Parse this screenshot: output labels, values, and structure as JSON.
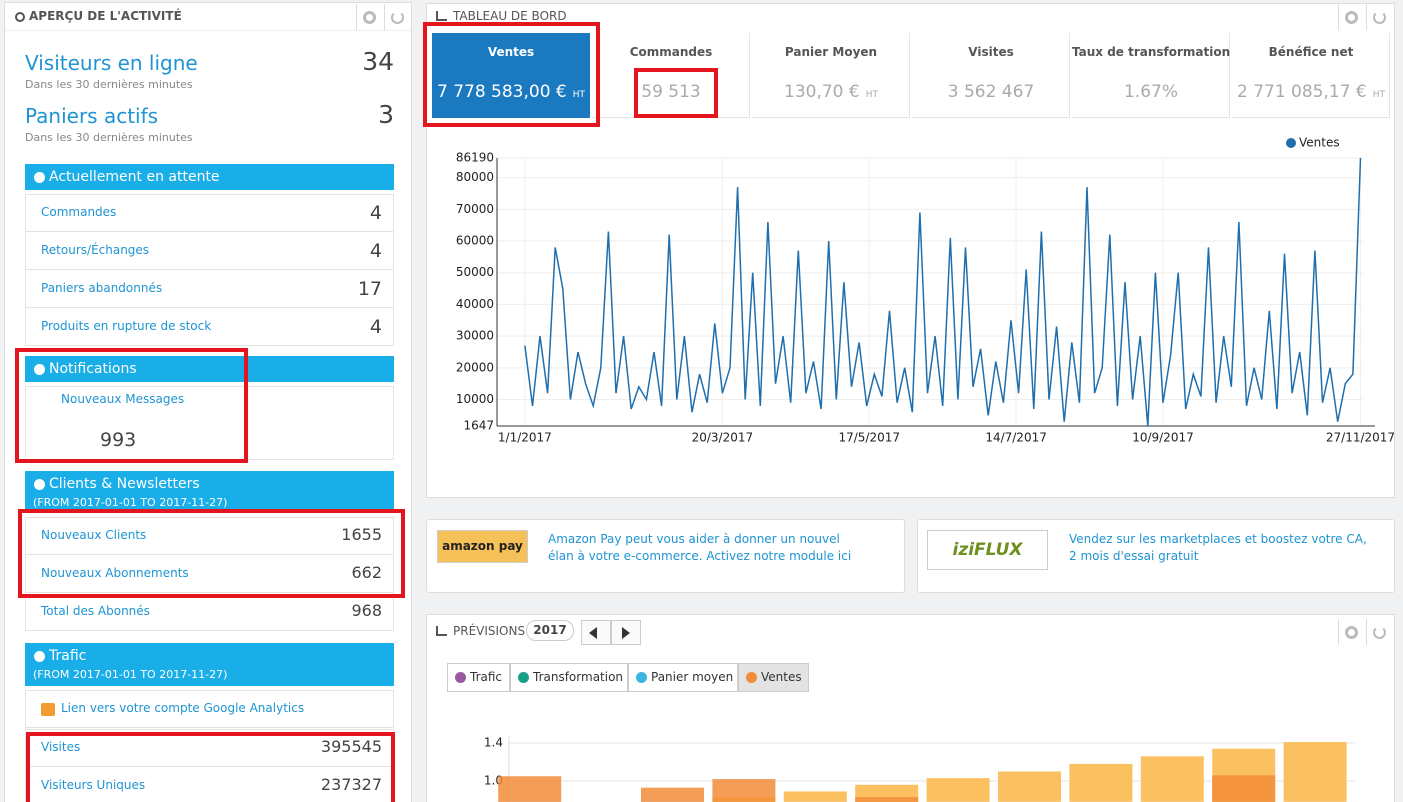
{
  "activity": {
    "title": "APERÇU DE L'ACTIVITÉ",
    "online": {
      "label": "Visiteurs en ligne",
      "sub": "Dans les 30 dernières minutes",
      "value": 34
    },
    "carts": {
      "label": "Paniers actifs",
      "sub": "Dans les 30 dernières minutes",
      "value": 3
    },
    "pending": {
      "title": "Actuellement en attente",
      "rows": [
        {
          "label": "Commandes",
          "value": 4
        },
        {
          "label": "Retours/Échanges",
          "value": 4
        },
        {
          "label": "Paniers abandonnés",
          "value": 17
        },
        {
          "label": "Produits en rupture de stock",
          "value": 4
        }
      ]
    },
    "notifications": {
      "title": "Notifications",
      "label": "Nouveaux Messages",
      "value": 993
    },
    "clients": {
      "title": "Clients & Newsletters",
      "period": "(FROM 2017-01-01 TO 2017-11-27)",
      "rows": [
        {
          "label": "Nouveaux Clients",
          "value": 1655
        },
        {
          "label": "Nouveaux Abonnements",
          "value": 662
        },
        {
          "label": "Total des Abonnés",
          "value": 968
        }
      ]
    },
    "traffic": {
      "title": "Trafic",
      "period": "(FROM 2017-01-01 TO 2017-11-27)",
      "link": "Lien vers votre compte Google Analytics",
      "rows": [
        {
          "label": "Visites",
          "value": 395545
        },
        {
          "label": "Visiteurs Uniques",
          "value": 237327
        }
      ]
    }
  },
  "dashboard": {
    "title": "TABLEAU DE BORD",
    "kpis": [
      {
        "label": "Ventes",
        "value": "7 778 583,00 €",
        "unit": "HT"
      },
      {
        "label": "Commandes",
        "value": "59 513"
      },
      {
        "label": "Panier Moyen",
        "value": "130,70 €",
        "unit": "HT"
      },
      {
        "label": "Visites",
        "value": "3 562 467"
      },
      {
        "label": "Taux de transformation",
        "value": "1.67%"
      },
      {
        "label": "Bénéfice net",
        "value": "2 771 085,17 €",
        "unit": "HT"
      }
    ]
  },
  "ads": [
    {
      "logo": "amazon pay",
      "text": "Amazon Pay peut vous aider à donner un nouvel élan à votre e-commerce. Activez notre module ici"
    },
    {
      "logo": "iziFLUX",
      "text": "Vendez sur les marketplaces et boostez votre CA, 2 mois d'essai gratuit"
    }
  ],
  "forecast": {
    "title": "PRÉVISIONS",
    "year": "2017",
    "tabs": [
      {
        "label": "Trafic",
        "color": "#9c5a9e"
      },
      {
        "label": "Transformation",
        "color": "#17a085"
      },
      {
        "label": "Panier moyen",
        "color": "#3ab5e0"
      },
      {
        "label": "Ventes",
        "color": "#f28c38"
      }
    ]
  },
  "chart_data": [
    {
      "type": "line",
      "x": [
        0,
        3,
        6,
        9,
        12,
        15,
        18,
        21,
        24,
        27,
        30,
        33,
        36,
        39,
        42,
        45,
        48,
        51,
        54,
        57,
        60,
        63,
        66,
        69,
        72,
        75,
        78,
        81,
        84,
        87,
        90,
        93,
        96,
        99,
        102,
        105,
        108,
        111,
        114,
        117,
        120,
        123,
        126,
        129,
        132,
        135,
        138,
        141,
        144,
        147,
        150,
        153,
        156,
        159,
        162,
        165,
        168,
        171,
        174,
        177,
        180,
        183,
        186,
        189,
        192,
        195,
        198,
        201,
        204,
        207,
        210,
        213,
        216,
        219,
        222,
        225,
        228,
        231,
        234,
        237,
        240,
        243,
        246,
        249,
        252,
        255,
        258,
        261,
        264,
        267,
        270,
        273,
        276,
        279,
        282,
        285,
        288,
        291,
        294,
        297,
        300,
        303,
        306,
        309,
        312,
        315,
        318,
        321,
        324,
        327,
        330
      ],
      "series": [
        {
          "name": "Ventes",
          "color": "#1f6fae",
          "values": [
            27000,
            8000,
            30000,
            12000,
            58000,
            45000,
            10000,
            25000,
            15000,
            8000,
            20000,
            63000,
            12000,
            30000,
            7000,
            14000,
            10000,
            25000,
            8000,
            62000,
            10000,
            30000,
            6000,
            18000,
            9000,
            34000,
            12000,
            20000,
            77000,
            10000,
            50000,
            8000,
            66000,
            15000,
            30000,
            9000,
            57000,
            12000,
            22000,
            7000,
            60000,
            10000,
            47000,
            14000,
            28000,
            8000,
            18000,
            11000,
            38000,
            9000,
            20000,
            6000,
            69000,
            12000,
            30000,
            8000,
            61000,
            10000,
            58000,
            14000,
            26000,
            5000,
            22000,
            9000,
            35000,
            12000,
            51000,
            7000,
            63000,
            10000,
            33000,
            3000,
            28000,
            9000,
            77000,
            12000,
            20000,
            62000,
            8000,
            47000,
            10000,
            30000,
            1647,
            50000,
            9000,
            24000,
            50000,
            7000,
            18000,
            11000,
            58000,
            9000,
            30000,
            14000,
            66000,
            8000,
            20000,
            10000,
            38000,
            7000,
            56000,
            12000,
            25000,
            5000,
            57000,
            9000,
            20000,
            3000,
            15000,
            18000,
            86190
          ]
        }
      ],
      "xlim": [
        -11,
        331
      ],
      "xticks": [
        {
          "value": 0,
          "label": "1/1/2017"
        },
        {
          "value": 78,
          "label": "20/3/2017"
        },
        {
          "value": 136,
          "label": "17/5/2017"
        },
        {
          "value": 194,
          "label": "14/7/2017"
        },
        {
          "value": 252,
          "label": "10/9/2017"
        },
        {
          "value": 330,
          "label": "27/11/2017"
        }
      ],
      "ylim": [
        1647,
        86190
      ],
      "yticks": [
        1647,
        10000,
        20000,
        30000,
        40000,
        50000,
        60000,
        70000,
        80000,
        86190
      ],
      "grid": true,
      "legend": "top-right"
    },
    {
      "type": "bar",
      "categories": [
        null,
        null,
        null,
        null,
        null,
        null,
        null,
        null,
        null,
        null,
        null,
        null
      ],
      "series": [
        {
          "color": "#fbc160",
          "values": [
            null,
            null,
            null,
            0.83,
            0.89,
            0.96,
            1.03,
            1.1,
            1.18,
            1.26,
            1.34,
            1.41
          ]
        },
        {
          "color": "#f28c38",
          "values": [
            1.05,
            null,
            0.93,
            1.02,
            null,
            0.83,
            null,
            null,
            null,
            null,
            1.06,
            null
          ]
        }
      ],
      "ylim": [
        0.78,
        1.48
      ],
      "yticks": [
        {
          "value": 1,
          "label": "1.0"
        },
        {
          "value": 1.4,
          "label": "1.4"
        }
      ],
      "grid": true
    }
  ]
}
